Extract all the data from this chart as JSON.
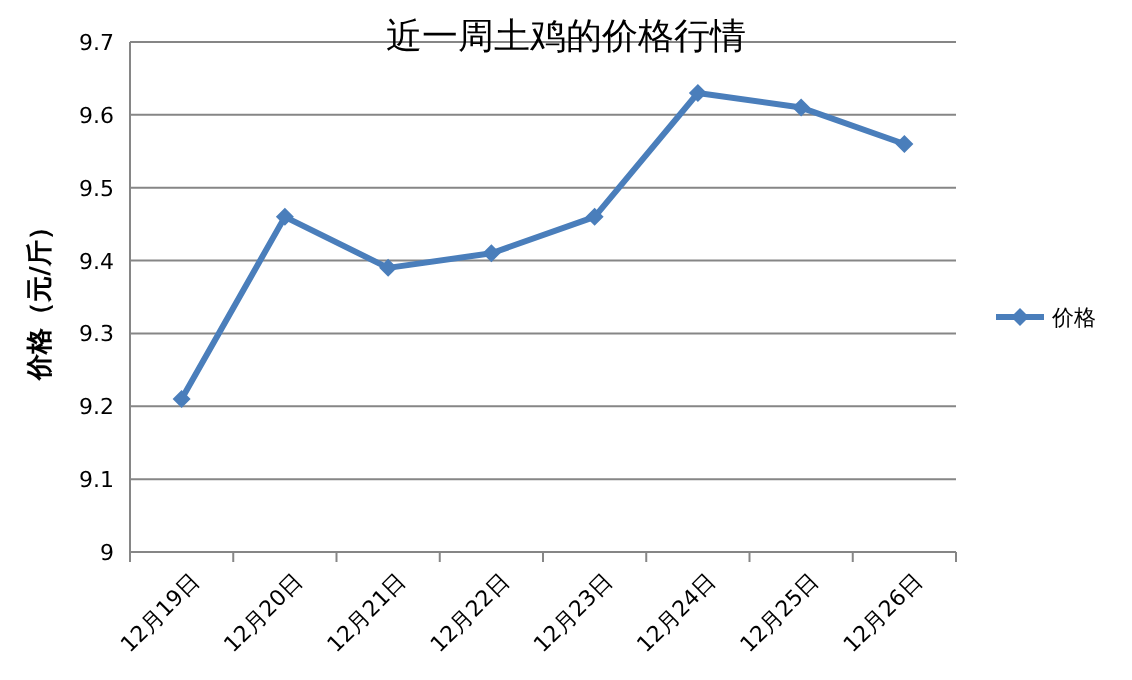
{
  "chart_data": {
    "type": "line",
    "title": "近一周土鸡的价格行情",
    "ylabel": "价格（元/斤）",
    "categories": [
      "12月19日",
      "12月20日",
      "12月21日",
      "12月22日",
      "12月23日",
      "12月24日",
      "12月25日",
      "12月26日"
    ],
    "series": [
      {
        "name": "价格",
        "color": "#4a7ebb",
        "values": [
          9.21,
          9.46,
          9.39,
          9.41,
          9.46,
          9.63,
          9.61,
          9.56
        ]
      }
    ],
    "ylim": [
      9,
      9.7
    ],
    "yticks": [
      9,
      9.1,
      9.2,
      9.3,
      9.4,
      9.5,
      9.6,
      9.7
    ],
    "grid": "y",
    "legend": "right",
    "marker": "diamond"
  }
}
